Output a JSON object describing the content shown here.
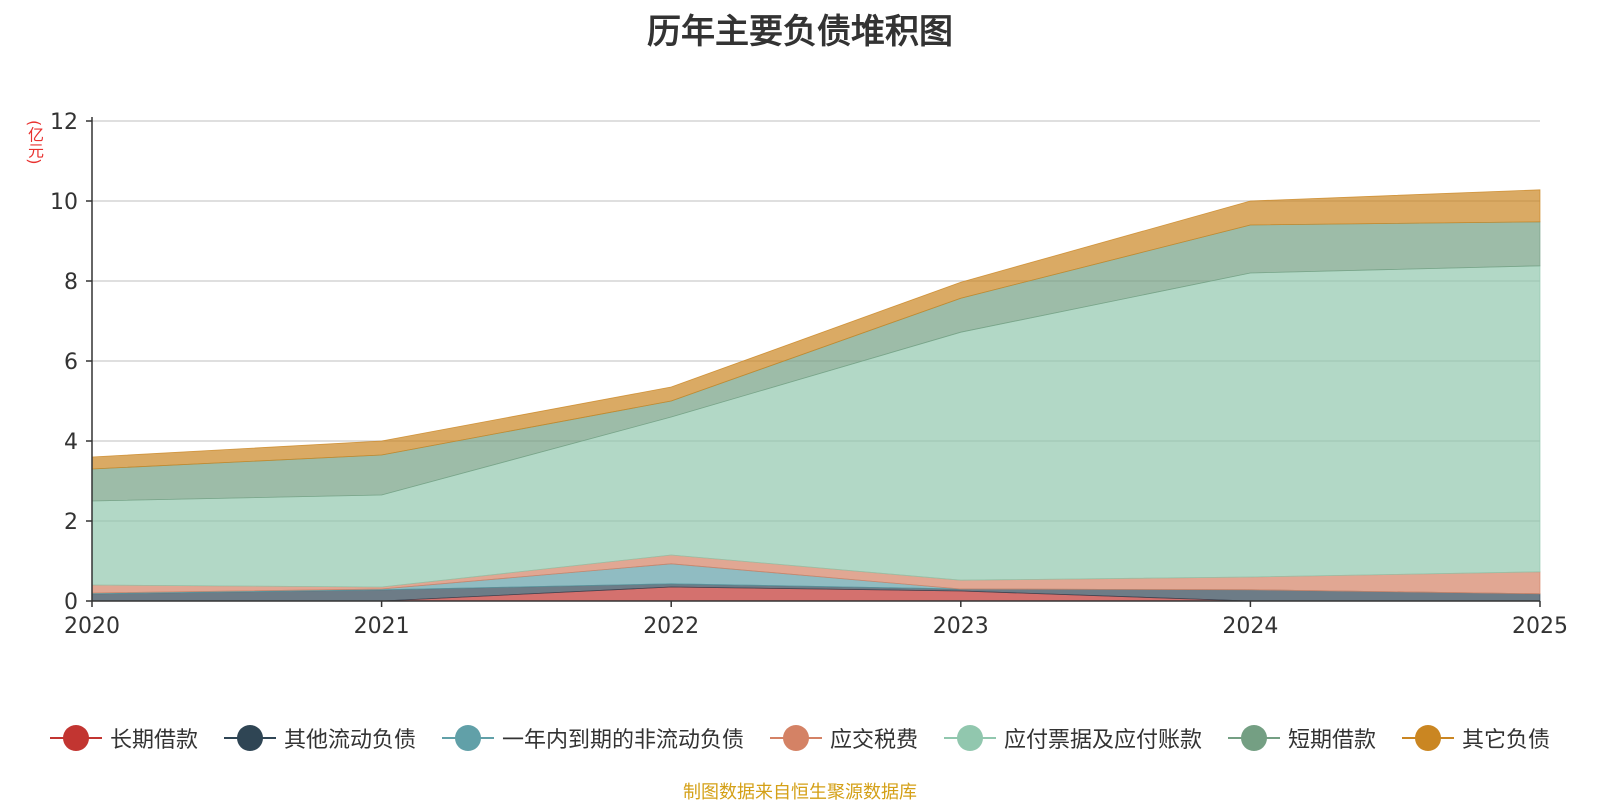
{
  "chart_data": {
    "type": "area",
    "stacked": true,
    "title": "历年主要负债堆积图",
    "unit": "(亿元)",
    "x": [
      "2020",
      "2021",
      "2022",
      "2023",
      "2024",
      "2025"
    ],
    "ylim": [
      0,
      12
    ],
    "yticks": [
      0,
      2,
      4,
      6,
      8,
      10,
      12
    ],
    "grid": true,
    "legend_position": "bottom",
    "series": [
      {
        "name": "长期借款",
        "color": "#c23531",
        "values": [
          0,
          0,
          0.35,
          0.25,
          0,
          0
        ]
      },
      {
        "name": "其他流动负债",
        "color": "#2f4554",
        "values": [
          0.18,
          0.28,
          0.08,
          0.05,
          0.28,
          0.18
        ]
      },
      {
        "name": "一年内到期的非流动负债",
        "color": "#61a0a8",
        "values": [
          0.02,
          0.02,
          0.5,
          0,
          0,
          0
        ]
      },
      {
        "name": "应交税费",
        "color": "#d48265",
        "values": [
          0.2,
          0.05,
          0.22,
          0.22,
          0.32,
          0.55
        ]
      },
      {
        "name": "应付票据及应付账款",
        "color": "#91c7ae",
        "values": [
          2.1,
          2.3,
          3.45,
          6.2,
          7.6,
          7.65
        ]
      },
      {
        "name": "短期借款",
        "color": "#749f83",
        "values": [
          0.8,
          1.0,
          0.4,
          0.85,
          1.2,
          1.1
        ]
      },
      {
        "name": "其它负债",
        "color": "#ca8622",
        "values": [
          0.3,
          0.35,
          0.35,
          0.4,
          0.6,
          0.8
        ]
      }
    ]
  },
  "footer": {
    "source": "制图数据来自恒生聚源数据库"
  }
}
